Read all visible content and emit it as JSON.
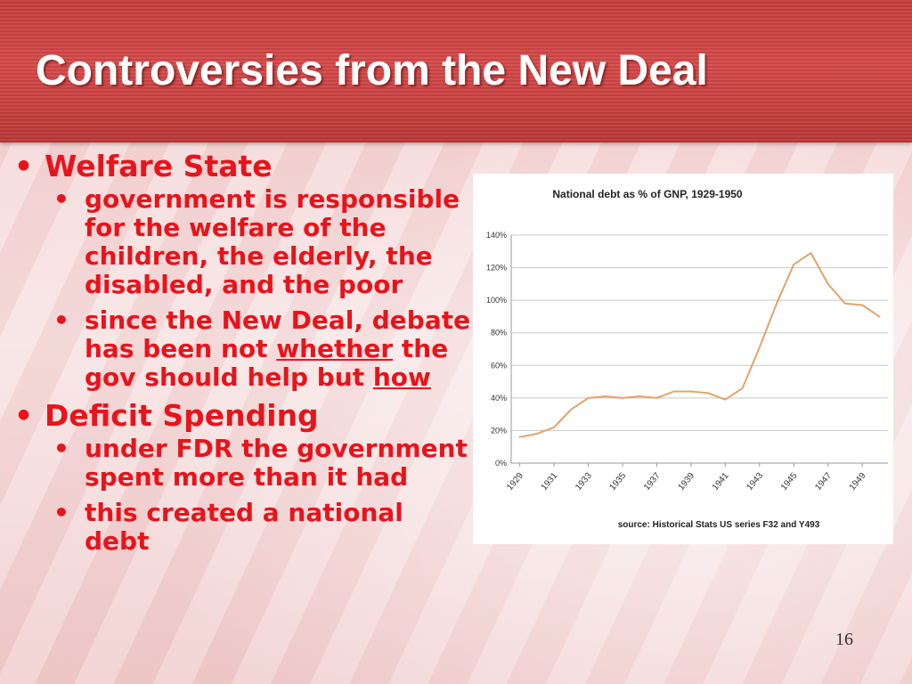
{
  "slide": {
    "title": "Controversies from the New Deal",
    "page_number": "16"
  },
  "content": {
    "sections": [
      {
        "heading": "Welfare State",
        "bullets": [
          {
            "text": "government is responsible for the welfare of the children, the elderly, the disabled, and the poor"
          },
          {
            "pre": "since the New Deal, debate has been not ",
            "u1": "whether",
            "mid": " the gov should help but ",
            "u2": "how"
          }
        ]
      },
      {
        "heading": "Deficit Spending",
        "bullets": [
          {
            "text": "under FDR the government spent more than it had"
          },
          {
            "text": "this created a national debt"
          }
        ]
      }
    ]
  },
  "chart_data": {
    "type": "line",
    "title": "National debt as % of GNP, 1929-1950",
    "source": "source: Historical Stats US  series F32 and Y493",
    "x": [
      1929,
      1930,
      1931,
      1932,
      1933,
      1934,
      1935,
      1936,
      1937,
      1938,
      1939,
      1940,
      1941,
      1942,
      1943,
      1944,
      1945,
      1946,
      1947,
      1948,
      1949,
      1950
    ],
    "series": [
      {
        "values": [
          16,
          18,
          22,
          33,
          40,
          41,
          40,
          41,
          40,
          44,
          44,
          43,
          39,
          46,
          71,
          98,
          122,
          129,
          110,
          98,
          97,
          90
        ]
      }
    ],
    "x_tick_labels": [
      "1929",
      "1931",
      "1933",
      "1935",
      "1937",
      "1939",
      "1941",
      "1943",
      "1945",
      "1947",
      "1949"
    ],
    "y_tick_labels": [
      "0%",
      "20%",
      "40%",
      "60%",
      "80%",
      "100%",
      "120%",
      "140%"
    ],
    "ylim": [
      0,
      140
    ],
    "grid": true,
    "line_color": "#e2a36a"
  }
}
